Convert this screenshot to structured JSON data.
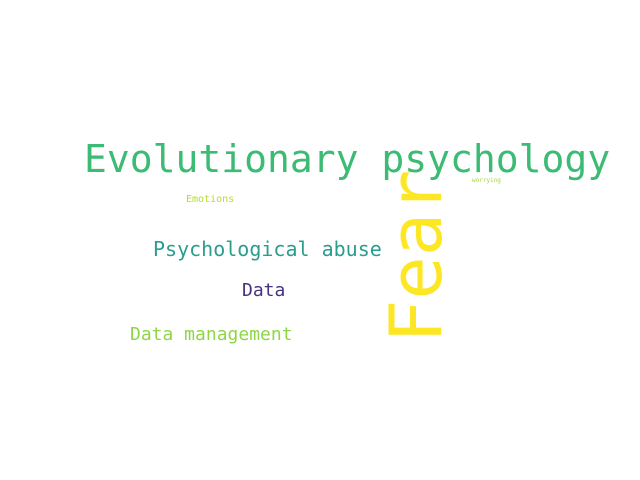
{
  "words": {
    "evolutionary_psychology": {
      "text": "Evolutionary psychology",
      "color": "#3cbb75"
    },
    "worrying": {
      "text": "worrying",
      "color": "#a0da39"
    },
    "emotions": {
      "text": "Emotions",
      "color": "#b5de2b"
    },
    "psychological_abuse": {
      "text": "Psychological abuse",
      "color": "#2a9d8f"
    },
    "data": {
      "text": "Data",
      "color": "#46327e"
    },
    "data_management": {
      "text": "Data management",
      "color": "#8ed645"
    },
    "fear": {
      "text": "Fear",
      "color": "#fde725"
    }
  }
}
